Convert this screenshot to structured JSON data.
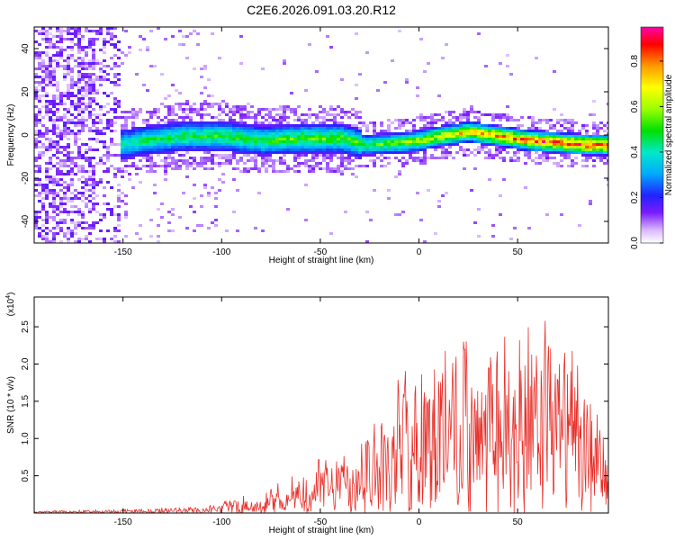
{
  "page": {
    "title": "C2E6.2026.091.03.20.R12"
  },
  "chart_data": [
    {
      "type": "heatmap",
      "name": "spectrogram",
      "xlabel": "Height of straight line (km)",
      "ylabel": "Frequency (Hz)",
      "xlim": [
        -195,
        96
      ],
      "ylim": [
        -50,
        50
      ],
      "xticks": [
        -150,
        -100,
        -50,
        0,
        50
      ],
      "yticks": [
        -40,
        -20,
        0,
        20,
        40
      ],
      "colorbar": {
        "label": "Normalized spectral amplitude",
        "range": [
          0,
          0.95
        ],
        "ticks": [
          0.0,
          0.2,
          0.4,
          0.6,
          0.8
        ],
        "tick_labels": [
          "0.0",
          "0.2",
          "0.4",
          "0.6",
          "0.8"
        ]
      },
      "ridge": {
        "description": "frequency of spectral peak along height",
        "height_km": [
          -152,
          -140,
          -120,
          -100,
          -80,
          -60,
          -40,
          -28,
          -10,
          0,
          10,
          25,
          40,
          55,
          70,
          85,
          95
        ],
        "freq_hz": [
          -4,
          -2,
          0,
          0,
          -2,
          -1,
          -1,
          -4,
          -3,
          -2,
          0,
          2,
          0,
          -2,
          -3,
          -4,
          -4
        ],
        "amplitude": [
          0.35,
          0.4,
          0.42,
          0.45,
          0.45,
          0.5,
          0.5,
          0.45,
          0.55,
          0.6,
          0.65,
          0.75,
          0.8,
          0.85,
          0.9,
          0.92,
          0.9
        ]
      }
    },
    {
      "type": "line",
      "name": "snr",
      "xlabel": "Height of straight line (km)",
      "ylabel": "SNR (10 * v/v)",
      "yscale_label": "(x10",
      "yscale_exp": "4",
      "xlim": [
        -195,
        96
      ],
      "ylim": [
        0,
        2.9
      ],
      "xticks": [
        -150,
        -100,
        -50,
        0,
        50
      ],
      "yticks": [
        0.5,
        1.0,
        1.5,
        2.0,
        2.5
      ],
      "ytick_labels": [
        "0.5",
        "1.0",
        "1.5",
        "2.0",
        "2.5"
      ],
      "color": "#e8302a",
      "envelope": {
        "height_km": [
          -195,
          -150,
          -120,
          -100,
          -80,
          -60,
          -50,
          -40,
          -30,
          -20,
          -10,
          0,
          10,
          20,
          30,
          40,
          50,
          60,
          70,
          80,
          90,
          96
        ],
        "snr_max": [
          0.03,
          0.05,
          0.08,
          0.15,
          0.3,
          0.55,
          0.75,
          0.9,
          1.1,
          1.35,
          1.9,
          2.2,
          2.6,
          2.7,
          2.0,
          2.7,
          2.4,
          2.7,
          2.9,
          2.5,
          1.6,
          1.3
        ]
      }
    }
  ]
}
